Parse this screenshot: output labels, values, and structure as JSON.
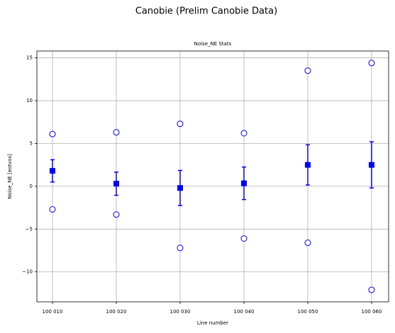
{
  "chart_data": {
    "type": "errorbar",
    "title": "Canobie (Prelim Canobie Data)",
    "subtitle": "Noise_NE Stats",
    "x_label": "Line number",
    "y_label": "Noise_NE [eotvos]",
    "categories": [
      "100 010",
      "100 020",
      "100 030",
      "100 040",
      "100 050",
      "100 060"
    ],
    "series": [
      {
        "marker": "square",
        "color": "#0000ff",
        "values": [
          1.8,
          0.3,
          -0.2,
          0.35,
          2.5,
          2.5
        ],
        "errors": [
          1.3,
          1.35,
          2.05,
          1.9,
          2.35,
          2.7
        ]
      },
      {
        "marker": "circle",
        "color": "#0000ff",
        "values": [
          6.1,
          6.3,
          7.3,
          6.2,
          13.5,
          14.4
        ]
      },
      {
        "marker": "circle",
        "color": "#0000ff",
        "values": [
          -2.7,
          -3.3,
          -7.2,
          -6.1,
          -6.6,
          -12.1
        ]
      }
    ],
    "ylim": [
      -13.5,
      15.8
    ],
    "yticks": [
      {
        "value": -10,
        "label": "−10"
      },
      {
        "value": -5,
        "label": "−5"
      },
      0,
      5,
      10,
      15
    ],
    "grid": true
  }
}
